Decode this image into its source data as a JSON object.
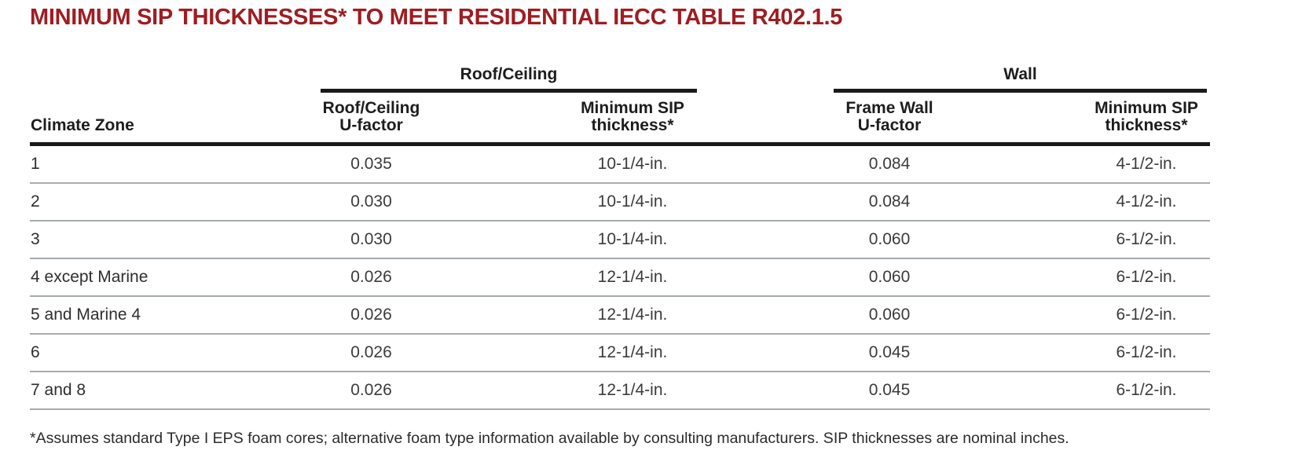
{
  "page": {
    "title": "MINIMUM SIP THICKNESSES* TO MEET RESIDENTIAL IECC TABLE R402.1.5",
    "footnote": "*Assumes standard Type I EPS foam cores; alternative foam type information available by consulting manufacturers. SIP thicknesses are nominal inches."
  },
  "colors": {
    "title_red": "#9e1d22",
    "rule_dark": "#1a1a1a",
    "rule_light": "#a6abae",
    "body_text": "#3b3b3b"
  },
  "table": {
    "groups": [
      {
        "label": "Roof/Ceiling"
      },
      {
        "label": "Wall"
      }
    ],
    "columns": [
      {
        "line1": "Climate Zone",
        "line2": ""
      },
      {
        "line1": "Roof/Ceiling",
        "line2": "U-factor"
      },
      {
        "line1": "Minimum SIP",
        "line2": "thickness*"
      },
      {
        "line1": "Frame Wall",
        "line2": "U-factor"
      },
      {
        "line1": "Minimum SIP",
        "line2": "thickness*"
      }
    ],
    "rows": [
      [
        "1",
        "0.035",
        "10-1/4-in.",
        "0.084",
        "4-1/2-in."
      ],
      [
        "2",
        "0.030",
        "10-1/4-in.",
        "0.084",
        "4-1/2-in."
      ],
      [
        "3",
        "0.030",
        "10-1/4-in.",
        "0.060",
        "6-1/2-in."
      ],
      [
        "4 except Marine",
        "0.026",
        "12-1/4-in.",
        "0.060",
        "6-1/2-in."
      ],
      [
        "5 and Marine 4",
        "0.026",
        "12-1/4-in.",
        "0.060",
        "6-1/2-in."
      ],
      [
        "6",
        "0.026",
        "12-1/4-in.",
        "0.045",
        "6-1/2-in."
      ],
      [
        "7 and 8",
        "0.026",
        "12-1/4-in.",
        "0.045",
        "6-1/2-in."
      ]
    ]
  }
}
